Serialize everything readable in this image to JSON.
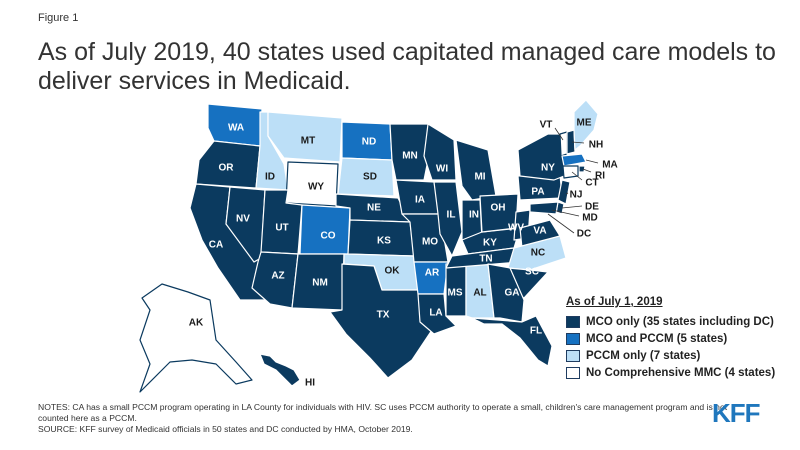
{
  "figure_label": "Figure 1",
  "title": "As of July 2019, 40 states used capitated managed care models to deliver services in Medicaid.",
  "colors": {
    "mco_only": "#0b3a5f",
    "mco_and_pccm": "#1671c1",
    "pccm_only": "#bcdff7",
    "no_mmc": "#ffffff"
  },
  "legend": {
    "title": "As of July 1, 2019",
    "items": [
      {
        "key": "mco_only",
        "label": "MCO only (35 states including DC)"
      },
      {
        "key": "mco_and_pccm",
        "label": "MCO and PCCM (5 states)"
      },
      {
        "key": "pccm_only",
        "label": "PCCM only (7 states)"
      },
      {
        "key": "no_mmc",
        "label": "No Comprehensive MMC (4 states)"
      }
    ]
  },
  "state_categories": {
    "mco_and_pccm": [
      "WA",
      "ND",
      "CO",
      "AR",
      "MA"
    ],
    "pccm_only": [
      "MT",
      "ID",
      "SD",
      "OK",
      "AL",
      "NC",
      "ME"
    ],
    "no_mmc": [
      "WY",
      "AK",
      "VT",
      "CT"
    ]
  },
  "state_labels": [
    "WA",
    "OR",
    "CA",
    "NV",
    "ID",
    "MT",
    "WY",
    "UT",
    "AZ",
    "CO",
    "NM",
    "ND",
    "SD",
    "NE",
    "KS",
    "OK",
    "TX",
    "MN",
    "IA",
    "MO",
    "AR",
    "LA",
    "WI",
    "IL",
    "MS",
    "AL",
    "MI",
    "IN",
    "KY",
    "TN",
    "OH",
    "WV",
    "GA",
    "FL",
    "SC",
    "NC",
    "VA",
    "PA",
    "NY",
    "VT",
    "NH",
    "ME",
    "MA",
    "RI",
    "CT",
    "NJ",
    "DE",
    "MD",
    "DC",
    "AK",
    "HI"
  ],
  "notes_line1": "NOTES: CA has a small PCCM program operating in LA County for individuals with HIV. SC uses PCCM authority to operate a small, children's care management program and is not counted here as a PCCM.",
  "notes_line2": "SOURCE: KFF survey of Medicaid officials in 50 states and DC conducted by HMA, October 2019.",
  "logo": "KFF"
}
